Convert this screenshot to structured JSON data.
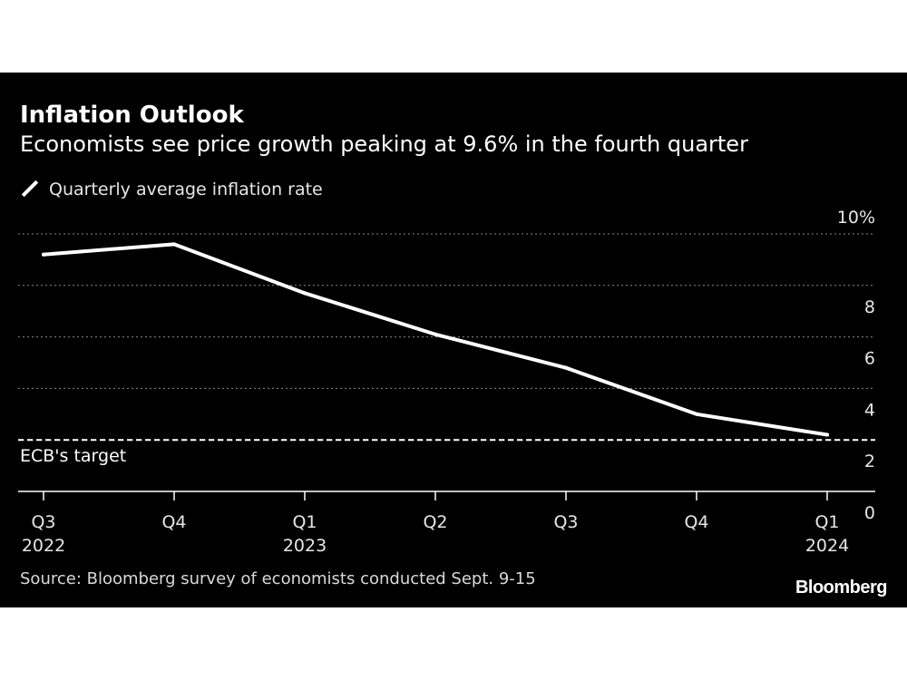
{
  "header": {
    "title": "Inflation Outlook",
    "subtitle": "Economists see price growth peaking at 9.6% in the fourth quarter"
  },
  "footer": {
    "source": "Source: Bloomberg survey of economists conducted Sept. 9-15",
    "brand": "Bloomberg"
  },
  "chart_data": {
    "type": "line",
    "title": "Inflation Outlook",
    "subtitle": "Economists see price growth peaking at 9.6% in the fourth quarter",
    "categories": [
      {
        "quarter": "Q3",
        "year": "2022"
      },
      {
        "quarter": "Q4",
        "year": ""
      },
      {
        "quarter": "Q1",
        "year": "2023"
      },
      {
        "quarter": "Q2",
        "year": ""
      },
      {
        "quarter": "Q3",
        "year": ""
      },
      {
        "quarter": "Q4",
        "year": ""
      },
      {
        "quarter": "Q1",
        "year": "2024"
      }
    ],
    "series": [
      {
        "name": "Quarterly average inflation rate",
        "values": [
          9.2,
          9.6,
          7.7,
          6.1,
          4.8,
          3.0,
          2.2
        ],
        "color": "#ffffff"
      }
    ],
    "reference_line": {
      "label": "ECB's target",
      "value": 2.0,
      "style": "dashed"
    },
    "y_ticks": [
      {
        "value": 10,
        "label": "10%"
      },
      {
        "value": 8,
        "label": "8"
      },
      {
        "value": 6,
        "label": "6"
      },
      {
        "value": 4,
        "label": "4"
      },
      {
        "value": 2,
        "label": "2"
      },
      {
        "value": 0,
        "label": "0"
      }
    ],
    "ylim": [
      0,
      10
    ],
    "y_axis_side": "right",
    "grid": true,
    "legend_position": "top-left",
    "background": "#000000"
  }
}
